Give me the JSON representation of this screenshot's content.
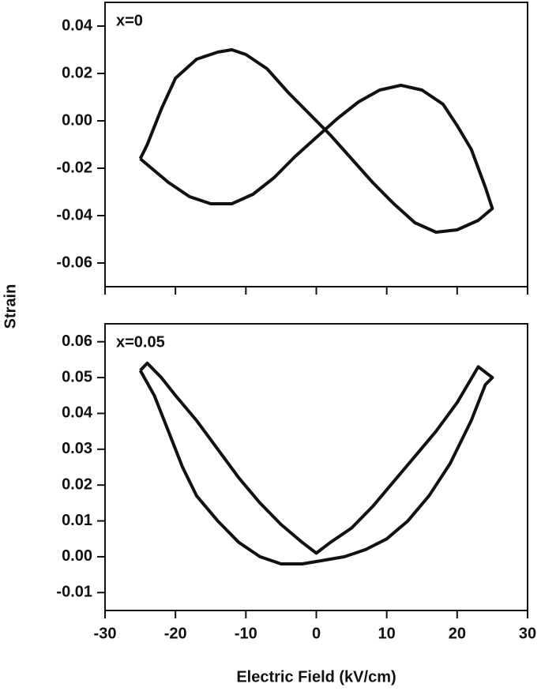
{
  "chart_data": [
    {
      "type": "line",
      "label": "x=0",
      "ylabel": "Strain",
      "x": [
        -25,
        -24,
        -22,
        -20,
        -17,
        -14,
        -12,
        -10,
        -7,
        -4,
        -1,
        2,
        5,
        8,
        11,
        14,
        17,
        20,
        23,
        25,
        24,
        22,
        20,
        18,
        15,
        12,
        9,
        6,
        3,
        0,
        -3,
        -6,
        -9,
        -12,
        -15,
        -18,
        -21,
        -23,
        -25
      ],
      "series": [
        {
          "color": "#111111",
          "values": [
            -0.016,
            -0.01,
            0.005,
            0.018,
            0.026,
            0.029,
            0.03,
            0.028,
            0.022,
            0.012,
            0.003,
            -0.006,
            -0.016,
            -0.026,
            -0.035,
            -0.043,
            -0.047,
            -0.046,
            -0.042,
            -0.037,
            -0.028,
            -0.012,
            -0.002,
            0.007,
            0.013,
            0.015,
            0.013,
            0.008,
            0.001,
            -0.007,
            -0.015,
            -0.024,
            -0.031,
            -0.035,
            -0.035,
            -0.032,
            -0.026,
            -0.021,
            -0.016
          ]
        }
      ],
      "xlim": [
        -30,
        30
      ],
      "xticks": [
        -30,
        -20,
        -10,
        0,
        10,
        20,
        30
      ],
      "show_xtick_labels": false,
      "ylim": [
        -0.07,
        0.05
      ],
      "yticks": [
        0.04,
        0.02,
        {
          "value": 0,
          "label": "0.00"
        },
        -0.02,
        -0.04,
        -0.06
      ]
    },
    {
      "type": "line",
      "label": "x=0.05",
      "xlabel": "Electric Field (kV/cm)",
      "x": [
        -25,
        -23,
        -21,
        -19,
        -17,
        -14,
        -11,
        -8,
        -5,
        -2,
        1,
        4,
        7,
        10,
        13,
        16,
        19,
        22,
        24,
        25,
        23,
        20,
        17,
        14,
        11,
        8,
        5,
        2,
        0,
        -2,
        -5,
        -8,
        -11,
        -14,
        -17,
        -20,
        -22,
        -24,
        -25
      ],
      "series": [
        {
          "color": "#111111",
          "values": [
            0.052,
            0.045,
            0.035,
            0.025,
            0.017,
            0.01,
            0.004,
            0,
            -0.002,
            -0.002,
            -0.001,
            0,
            0.002,
            0.005,
            0.01,
            0.017,
            0.026,
            0.038,
            0.048,
            0.05,
            0.053,
            0.043,
            0.035,
            0.028,
            0.021,
            0.014,
            0.008,
            0.004,
            0.001,
            0.004,
            0.009,
            0.015,
            0.022,
            0.03,
            0.038,
            0.045,
            0.05,
            0.054,
            0.052
          ]
        }
      ],
      "xlim": [
        -30,
        30
      ],
      "xticks": [
        -30,
        -20,
        -10,
        0,
        10,
        20,
        30
      ],
      "show_xtick_labels": true,
      "ylim": [
        -0.015,
        0.065
      ],
      "yticks": [
        0.06,
        0.05,
        0.04,
        0.03,
        0.02,
        0.01,
        {
          "value": 0,
          "label": "0.00"
        },
        -0.01
      ]
    }
  ]
}
